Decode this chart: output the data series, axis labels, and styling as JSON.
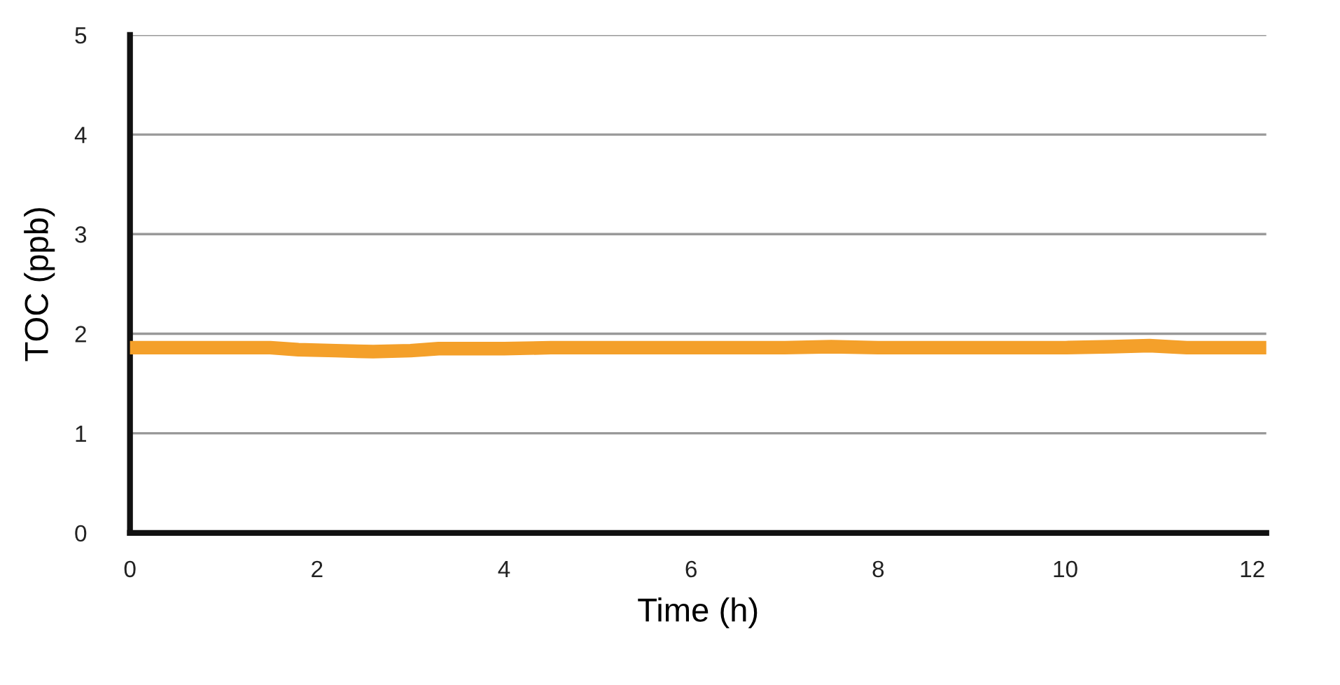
{
  "chart_data": {
    "type": "line",
    "xlabel": "Time (h)",
    "ylabel": "TOC (ppb)",
    "xlim": [
      0,
      12.15
    ],
    "xticks": [
      0,
      2,
      4,
      6,
      8,
      10,
      12
    ],
    "ylim": [
      0,
      5
    ],
    "yticks": [
      0,
      1,
      2,
      3,
      4,
      5
    ],
    "grid": "y",
    "marker": "none",
    "line_style": "solid",
    "series": [
      {
        "color": "#f4a02a",
        "x": [
          0,
          0.5,
          1,
          1.5,
          1.8,
          2.2,
          2.6,
          3.0,
          3.3,
          4,
          4.5,
          5,
          5.5,
          6,
          6.5,
          7,
          7.5,
          8,
          8.5,
          9,
          9.5,
          10,
          10.5,
          10.9,
          11.3,
          11.7,
          12.15
        ],
        "values": [
          1.86,
          1.86,
          1.86,
          1.86,
          1.84,
          1.83,
          1.82,
          1.83,
          1.85,
          1.85,
          1.86,
          1.86,
          1.86,
          1.86,
          1.86,
          1.86,
          1.87,
          1.86,
          1.86,
          1.86,
          1.86,
          1.86,
          1.87,
          1.88,
          1.86,
          1.86,
          1.86
        ]
      }
    ]
  }
}
